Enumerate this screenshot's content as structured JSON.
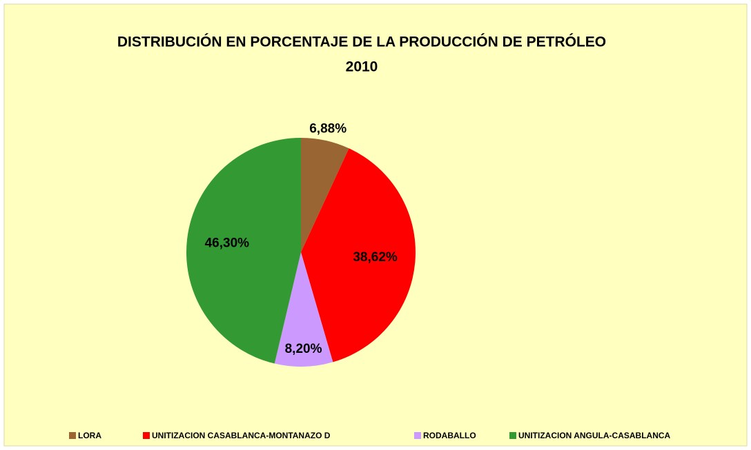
{
  "chart_data": {
    "type": "pie",
    "title": [
      "DISTRIBUCIÓN EN PORCENTAJE DE LA PRODUCCIÓN DE PETRÓLEO",
      "2010"
    ],
    "categories": [
      "LORA",
      "UNITIZACION CASABLANCA-MONTANAZO D",
      "RODABALLO",
      "UNITIZACION ANGULA-CASABLANCA"
    ],
    "values": [
      6.88,
      38.62,
      8.2,
      46.3
    ],
    "value_labels": [
      "6,88%",
      "38,62%",
      "8,20%",
      "46,30%"
    ],
    "colors": [
      "#996633",
      "#ff0000",
      "#cc99ff",
      "#339933"
    ],
    "legend": "bottom"
  }
}
